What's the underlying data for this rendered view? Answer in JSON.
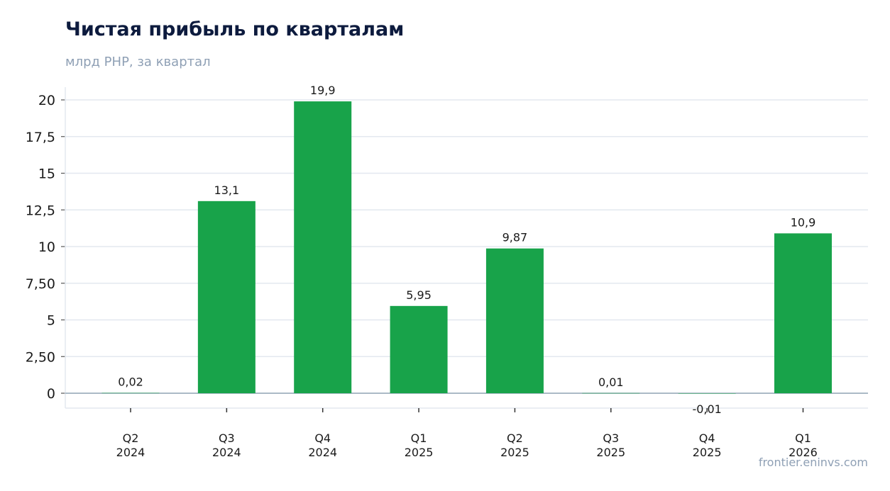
{
  "header": {
    "title": "Чистая прибыль по кварталам",
    "subtitle": "млрд РНР, за квартал"
  },
  "footer": {
    "source": "frontier.eninvs.com"
  },
  "chart_data": {
    "type": "bar",
    "title": "Чистая прибыль по кварталам",
    "subtitle": "млрд РНР, за квартал",
    "categories": [
      [
        "Q2",
        "2024"
      ],
      [
        "Q3",
        "2024"
      ],
      [
        "Q4",
        "2024"
      ],
      [
        "Q1",
        "2025"
      ],
      [
        "Q2",
        "2025"
      ],
      [
        "Q3",
        "2025"
      ],
      [
        "Q4",
        "2025"
      ],
      [
        "Q1",
        "2026"
      ]
    ],
    "values": [
      0.02,
      13.1,
      19.9,
      5.95,
      9.87,
      0.01,
      -0.01,
      10.9
    ],
    "data_labels": [
      "0,02",
      "13,1",
      "19,9",
      "5,95",
      "9,87",
      "0,01",
      "-0,01",
      "10,9"
    ],
    "yticks": [
      0,
      2.5,
      5,
      7.5,
      10,
      12.5,
      15,
      17.5,
      20
    ],
    "ytick_labels": [
      "0",
      "2,50",
      "5",
      "7,50",
      "10",
      "12,5",
      "15",
      "17,5",
      "20"
    ],
    "ylim": [
      -1,
      21
    ],
    "xlabel": "",
    "ylabel": "",
    "grid": true,
    "legend": "none",
    "colors": {
      "bar": "#18a34a",
      "grid": "#e3e8ef",
      "zero_line": "#8fa3b3",
      "axis": "#e3e8ef"
    }
  }
}
